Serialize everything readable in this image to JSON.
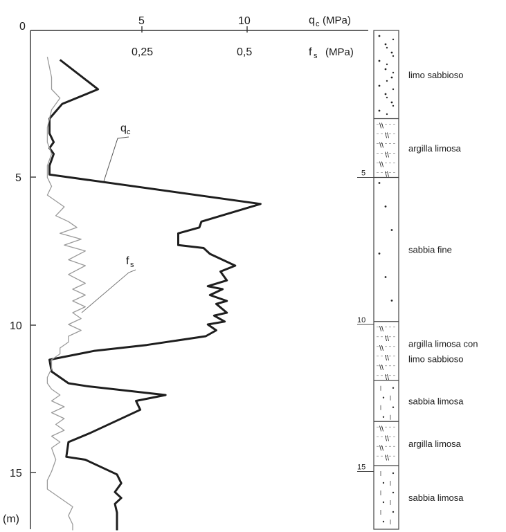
{
  "chart_data": {
    "type": "line",
    "qc_axis": {
      "label": "q",
      "label_sub": "c",
      "unit": "(MPa)",
      "ticks": [
        5,
        10
      ],
      "range": [
        0,
        14.5
      ]
    },
    "fs_axis": {
      "label": "f",
      "label_sub": "s",
      "unit": "(MPa)",
      "ticks": [
        "0,25",
        "0,5"
      ],
      "range": [
        0,
        0.725
      ]
    },
    "origin_label": "0",
    "depth_axis": {
      "unit": "(m)",
      "ticks": [
        5,
        10,
        15
      ],
      "range": [
        0,
        17
      ]
    },
    "series": [
      {
        "name": "q",
        "name_sub": "c",
        "x": [
          1.4,
          3.2,
          1.5,
          0.9,
          0.9,
          1.1,
          0.9,
          1.1,
          0.9,
          0.9,
          10.9,
          8.1,
          8.0,
          7.0,
          7.0,
          8.2,
          8.5,
          9.7,
          9.0,
          9.3,
          8.4,
          9.1,
          8.5,
          9.3,
          8.8,
          9.3,
          8.7,
          9.2,
          8.4,
          8.8,
          8.3,
          5.5,
          3.0,
          0.9,
          1.0,
          1.8,
          2.7,
          6.4,
          5.0,
          5.2,
          3.4,
          2.8,
          1.8,
          1.7,
          2.6,
          4.1,
          4.3,
          4.0,
          4.3,
          4.0,
          4.1,
          4.1
        ],
        "depth": [
          1.0,
          2.0,
          2.5,
          3.0,
          3.5,
          3.8,
          4.0,
          4.2,
          4.6,
          4.9,
          5.9,
          6.5,
          6.7,
          6.9,
          7.3,
          7.4,
          7.6,
          8.0,
          8.2,
          8.5,
          8.7,
          8.8,
          9.0,
          9.2,
          9.3,
          9.6,
          9.7,
          9.9,
          10.0,
          10.2,
          10.4,
          10.7,
          10.9,
          11.2,
          11.6,
          12.0,
          12.1,
          12.4,
          12.6,
          12.9,
          13.5,
          13.7,
          14.0,
          14.5,
          14.6,
          15.1,
          15.4,
          15.7,
          15.9,
          16.1,
          16.4,
          17.0
        ],
        "color": "#1e1e1e"
      },
      {
        "name": "f",
        "name_sub": "s",
        "x": [
          0.04,
          0.05,
          0.05,
          0.07,
          0.05,
          0.04,
          0.04,
          0.05,
          0.04,
          0.04,
          0.05,
          0.04,
          0.06,
          0.08,
          0.06,
          0.09,
          0.11,
          0.07,
          0.12,
          0.08,
          0.13,
          0.09,
          0.13,
          0.09,
          0.13,
          0.1,
          0.13,
          0.1,
          0.13,
          0.1,
          0.12,
          0.09,
          0.12,
          0.09,
          0.09,
          0.07,
          0.07,
          0.05,
          0.05,
          0.04,
          0.04,
          0.05,
          0.07,
          0.05,
          0.08,
          0.05,
          0.08,
          0.06,
          0.08,
          0.05,
          0.07,
          0.05,
          0.06,
          0.05,
          0.04,
          0.04,
          0.06,
          0.08,
          0.1,
          0.09,
          0.1,
          0.1
        ],
        "depth": [
          0.9,
          1.6,
          2.0,
          2.3,
          2.7,
          3.3,
          3.8,
          4.2,
          4.6,
          5.0,
          5.3,
          5.6,
          5.8,
          6.0,
          6.3,
          6.5,
          6.7,
          6.9,
          7.1,
          7.3,
          7.5,
          7.8,
          8.0,
          8.3,
          8.6,
          8.8,
          9.0,
          9.2,
          9.4,
          9.6,
          9.8,
          10.0,
          10.2,
          10.4,
          10.6,
          10.8,
          11.0,
          11.2,
          11.5,
          11.8,
          12.0,
          12.2,
          12.4,
          12.6,
          12.8,
          13.0,
          13.2,
          13.4,
          13.6,
          13.8,
          14.0,
          14.2,
          14.6,
          15.0,
          15.3,
          15.6,
          15.8,
          16.0,
          16.2,
          16.5,
          16.8,
          17.0
        ],
        "color": "#9a9a9a"
      }
    ],
    "strata": [
      {
        "top": 0.0,
        "bottom": 3.0,
        "label": "limo sabbioso",
        "pattern": "dots-dense"
      },
      {
        "top": 3.0,
        "bottom": 5.0,
        "label": "argilla limosa",
        "pattern": "hatch"
      },
      {
        "top": 5.0,
        "bottom": 9.9,
        "label": "sabbia fine",
        "pattern": "dots-sparse"
      },
      {
        "top": 9.9,
        "bottom": 11.9,
        "label": "argilla limosa con limo sabbioso",
        "pattern": "hatch"
      },
      {
        "top": 11.9,
        "bottom": 13.3,
        "label": "sabbia limosa",
        "pattern": "dashes"
      },
      {
        "top": 13.3,
        "bottom": 14.8,
        "label": "argilla limosa",
        "pattern": "hatch"
      },
      {
        "top": 14.8,
        "bottom": 17.0,
        "label": "sabbia limosa",
        "pattern": "dashes"
      }
    ],
    "strata_depth_ticks": [
      5,
      10,
      15
    ],
    "grid": false
  }
}
